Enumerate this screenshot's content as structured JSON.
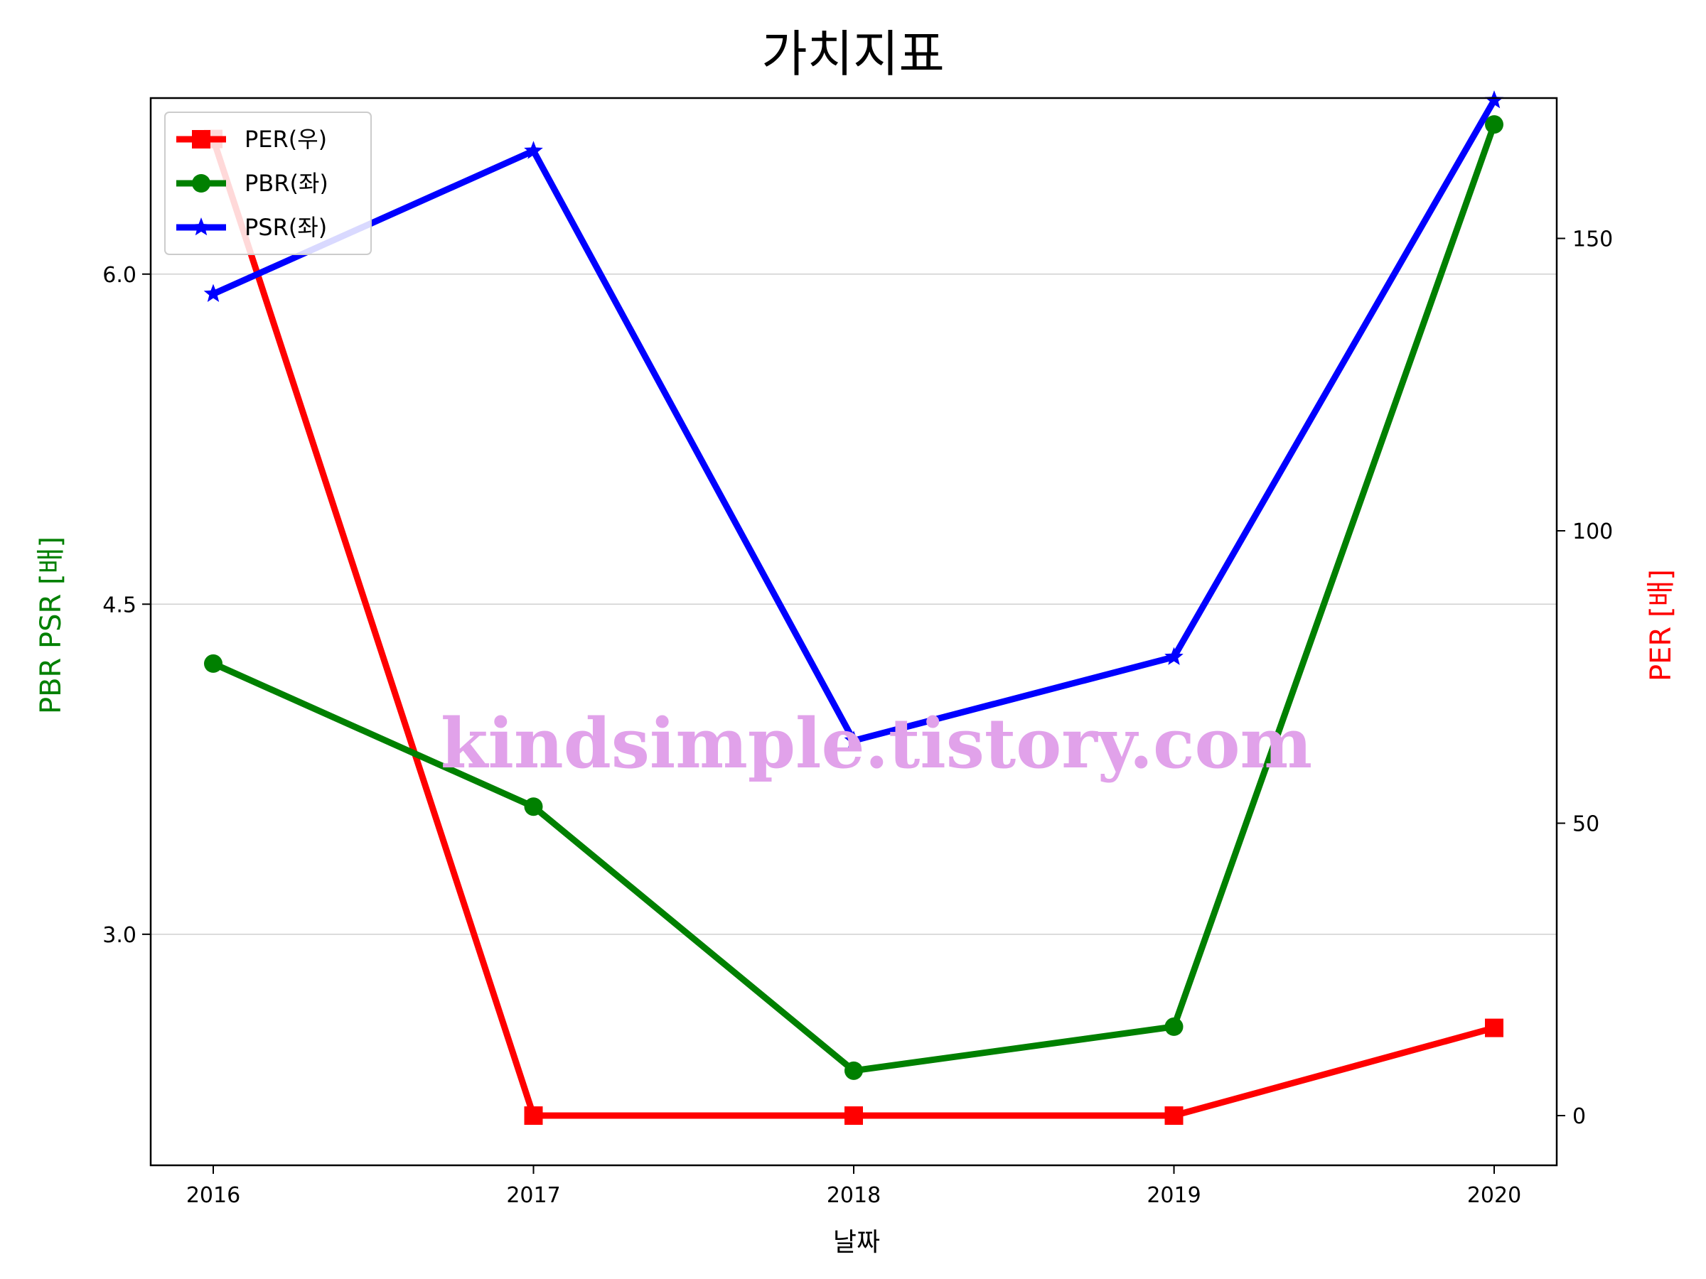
{
  "chart_data": {
    "type": "line",
    "title": "가치지표",
    "xlabel": "날짜",
    "ylabel_left": "PBR PSR [배]",
    "ylabel_right": "PER [배]",
    "categories": [
      "2016",
      "2017",
      "2018",
      "2019",
      "2020"
    ],
    "left_axis": {
      "ylim": [
        1.95,
        6.8
      ],
      "ticks": [
        3.0,
        4.5,
        6.0
      ],
      "tick_labels": [
        "3.0",
        "4.5",
        "6.0"
      ],
      "label_color": "#008000"
    },
    "right_axis": {
      "ylim": [
        -8.5,
        174
      ],
      "ticks": [
        0,
        50,
        100,
        150
      ],
      "tick_labels": [
        "0",
        "50",
        "100",
        "150"
      ],
      "label_color": "#ff0000"
    },
    "grid": "horizontal-left-axis",
    "legend_position": "upper-left",
    "series": [
      {
        "name": "PER(우)",
        "axis": "right",
        "color": "#ff0000",
        "marker": "square",
        "values": [
          167,
          0,
          0,
          0,
          15
        ]
      },
      {
        "name": "PBR(좌)",
        "axis": "left",
        "color": "#008000",
        "marker": "circle",
        "values": [
          4.23,
          3.58,
          2.38,
          2.58,
          6.68
        ]
      },
      {
        "name": "PSR(좌)",
        "axis": "left",
        "color": "#0000ff",
        "marker": "star",
        "values": [
          5.91,
          6.56,
          3.88,
          4.26,
          6.79
        ]
      }
    ],
    "watermark": "kindsimple.tistory.com"
  }
}
